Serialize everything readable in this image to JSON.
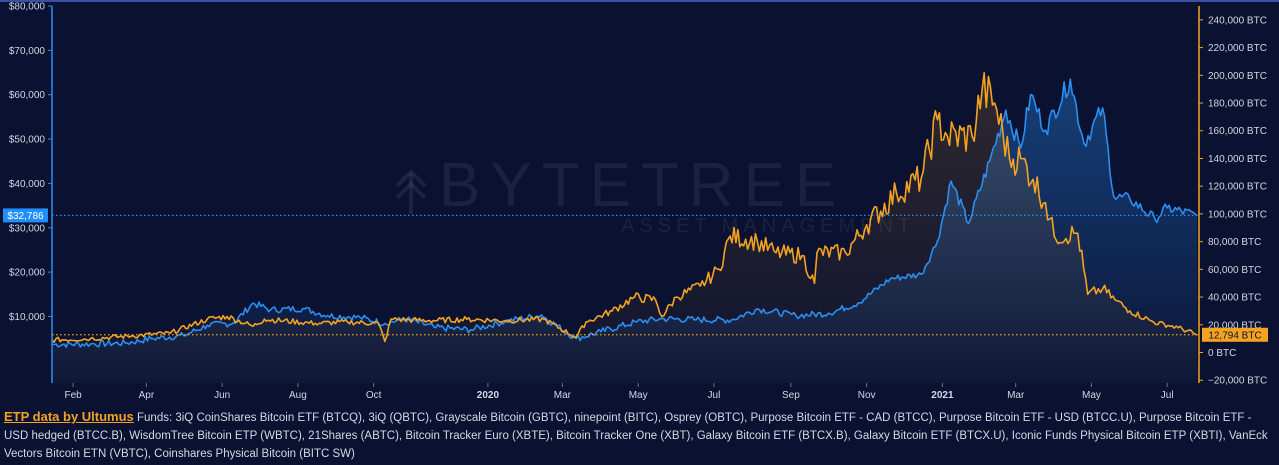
{
  "chart_data": {
    "type": "line",
    "title": "",
    "watermark": {
      "name": "BYTETREE",
      "sub": "ASSET MANAGEMENT"
    },
    "x_ticks": [
      "Feb",
      "Apr",
      "Jun",
      "Aug",
      "Oct",
      "2020",
      "Mar",
      "May",
      "Jul",
      "Sep",
      "Nov",
      "2021",
      "Mar",
      "May",
      "Jul"
    ],
    "x_ticks_bold": [
      "2020",
      "2021"
    ],
    "y_left": {
      "ticks": [
        "$10,000",
        "$20,000",
        "$30,000",
        "$40,000",
        "$50,000",
        "$60,000",
        "$70,000",
        "$80,000"
      ],
      "tick_values": [
        10000,
        20000,
        30000,
        40000,
        50000,
        60000,
        70000,
        80000
      ],
      "range": [
        -5000,
        80000
      ],
      "current_label": "$32,786",
      "current_value": 32786,
      "color": "#1f8fff"
    },
    "y_right": {
      "ticks": [
        "−20,000 BTC",
        "0 BTC",
        "20,000 BTC",
        "40,000 BTC",
        "60,000 BTC",
        "80,000 BTC",
        "100,000 BTC",
        "120,000 BTC",
        "140,000 BTC",
        "160,000 BTC",
        "180,000 BTC",
        "200,000 BTC",
        "220,000 BTC",
        "240,000 BTC"
      ],
      "tick_values": [
        -20000,
        0,
        20000,
        40000,
        60000,
        80000,
        100000,
        120000,
        140000,
        160000,
        180000,
        200000,
        220000,
        240000
      ],
      "range": [
        -22000,
        250000
      ],
      "current_label": "12,794 BTC",
      "current_value": 12794,
      "color": "#f4a321"
    },
    "x_range": [
      "2019-01-15",
      "2021-07-25"
    ],
    "series": [
      {
        "axis": "left",
        "color": "#2b8ef0",
        "points": [
          [
            "2019-01-15",
            3700
          ],
          [
            "2019-02-15",
            3800
          ],
          [
            "2019-03-15",
            4000
          ],
          [
            "2019-04-05",
            5000
          ],
          [
            "2019-05-01",
            5700
          ],
          [
            "2019-05-20",
            8000
          ],
          [
            "2019-06-10",
            8500
          ],
          [
            "2019-06-26",
            13000
          ],
          [
            "2019-07-10",
            11500
          ],
          [
            "2019-08-05",
            11800
          ],
          [
            "2019-08-25",
            10200
          ],
          [
            "2019-09-20",
            9800
          ],
          [
            "2019-10-10",
            8400
          ],
          [
            "2019-10-26",
            9500
          ],
          [
            "2019-11-20",
            7500
          ],
          [
            "2019-12-18",
            7000
          ],
          [
            "2020-01-15",
            8900
          ],
          [
            "2020-02-13",
            10300
          ],
          [
            "2020-03-12",
            5000
          ],
          [
            "2020-04-01",
            6600
          ],
          [
            "2020-04-30",
            8800
          ],
          [
            "2020-05-20",
            9500
          ],
          [
            "2020-06-15",
            9300
          ],
          [
            "2020-07-15",
            9200
          ],
          [
            "2020-08-05",
            11700
          ],
          [
            "2020-09-05",
            10200
          ],
          [
            "2020-10-01",
            10700
          ],
          [
            "2020-10-25",
            13000
          ],
          [
            "2020-11-20",
            18500
          ],
          [
            "2020-12-15",
            19500
          ],
          [
            "2020-12-28",
            27000
          ],
          [
            "2021-01-08",
            40500
          ],
          [
            "2021-01-22",
            31000
          ],
          [
            "2021-02-08",
            45000
          ],
          [
            "2021-02-21",
            56500
          ],
          [
            "2021-03-05",
            48000
          ],
          [
            "2021-03-13",
            60000
          ],
          [
            "2021-03-25",
            52000
          ],
          [
            "2021-04-14",
            63500
          ],
          [
            "2021-04-25",
            49000
          ],
          [
            "2021-05-10",
            57000
          ],
          [
            "2021-05-19",
            37000
          ],
          [
            "2021-06-01",
            36500
          ],
          [
            "2021-06-21",
            32000
          ],
          [
            "2021-07-01",
            34500
          ],
          [
            "2021-07-25",
            32786
          ]
        ]
      },
      {
        "axis": "right",
        "color": "#f4a321",
        "points": [
          [
            "2019-01-15",
            9000
          ],
          [
            "2019-02-15",
            10000
          ],
          [
            "2019-03-20",
            12000
          ],
          [
            "2019-04-20",
            14000
          ],
          [
            "2019-05-20",
            24000
          ],
          [
            "2019-06-05",
            26000
          ],
          [
            "2019-06-26",
            19000
          ],
          [
            "2019-07-05",
            24000
          ],
          [
            "2019-08-15",
            21000
          ],
          [
            "2019-09-10",
            22000
          ],
          [
            "2019-10-05",
            21000
          ],
          [
            "2019-10-10",
            8000
          ],
          [
            "2019-10-15",
            24000
          ],
          [
            "2019-11-15",
            23000
          ],
          [
            "2019-12-15",
            24000
          ],
          [
            "2020-01-15",
            23000
          ],
          [
            "2020-02-15",
            24000
          ],
          [
            "2020-03-12",
            11000
          ],
          [
            "2020-03-20",
            22000
          ],
          [
            "2020-04-10",
            30000
          ],
          [
            "2020-04-28",
            40000
          ],
          [
            "2020-05-15",
            38000
          ],
          [
            "2020-05-20",
            26000
          ],
          [
            "2020-06-01",
            40000
          ],
          [
            "2020-06-20",
            48000
          ],
          [
            "2020-07-05",
            60000
          ],
          [
            "2020-07-14",
            84000
          ],
          [
            "2020-08-05",
            80000
          ],
          [
            "2020-08-20",
            72000
          ],
          [
            "2020-09-10",
            70000
          ],
          [
            "2020-09-20",
            50000
          ],
          [
            "2020-09-22",
            72000
          ],
          [
            "2020-10-15",
            72000
          ],
          [
            "2020-11-01",
            92000
          ],
          [
            "2020-11-25",
            115000
          ],
          [
            "2020-12-15",
            126000
          ],
          [
            "2020-12-28",
            168000
          ],
          [
            "2021-01-05",
            156000
          ],
          [
            "2021-01-25",
            156000
          ],
          [
            "2021-02-02",
            190000
          ],
          [
            "2021-02-12",
            180000
          ],
          [
            "2021-02-24",
            140000
          ],
          [
            "2021-03-05",
            140000
          ],
          [
            "2021-03-15",
            125000
          ],
          [
            "2021-03-25",
            108000
          ],
          [
            "2021-04-01",
            84000
          ],
          [
            "2021-04-20",
            86000
          ],
          [
            "2021-04-28",
            42000
          ],
          [
            "2021-05-10",
            46000
          ],
          [
            "2021-05-20",
            38000
          ],
          [
            "2021-06-01",
            30000
          ],
          [
            "2021-06-20",
            22000
          ],
          [
            "2021-07-10",
            18000
          ],
          [
            "2021-07-25",
            12794
          ]
        ]
      }
    ]
  },
  "footer": {
    "source_label": "ETP data by Ultumus",
    "funds_text": "Funds: 3iQ CoinShares Bitcoin ETF (BTCQ), 3iQ (QBTC), Grayscale Bitcoin (GBTC), ninepoint (BITC), Osprey (OBTC), Purpose Bitcoin ETF - CAD (BTCC), Purpose Bitcoin ETF - USD (BTCC.U), Purpose Bitcoin ETF - USD hedged (BTCC.B), WisdomTree Bitcoin ETP (WBTC), 21Shares (ABTC), Bitcoin Tracker Euro (XBTE), Bitcoin Tracker One (XBT), Galaxy Bitcoin ETF (BTCX.B), Galaxy Bitcoin ETF (BTCX.U), Iconic Funds Physical Bitcoin ETP (XBTI), VanEck Vectors Bitcoin ETN (VBTC), Coinshares Physical Bitcoin (BITC SW)"
  }
}
